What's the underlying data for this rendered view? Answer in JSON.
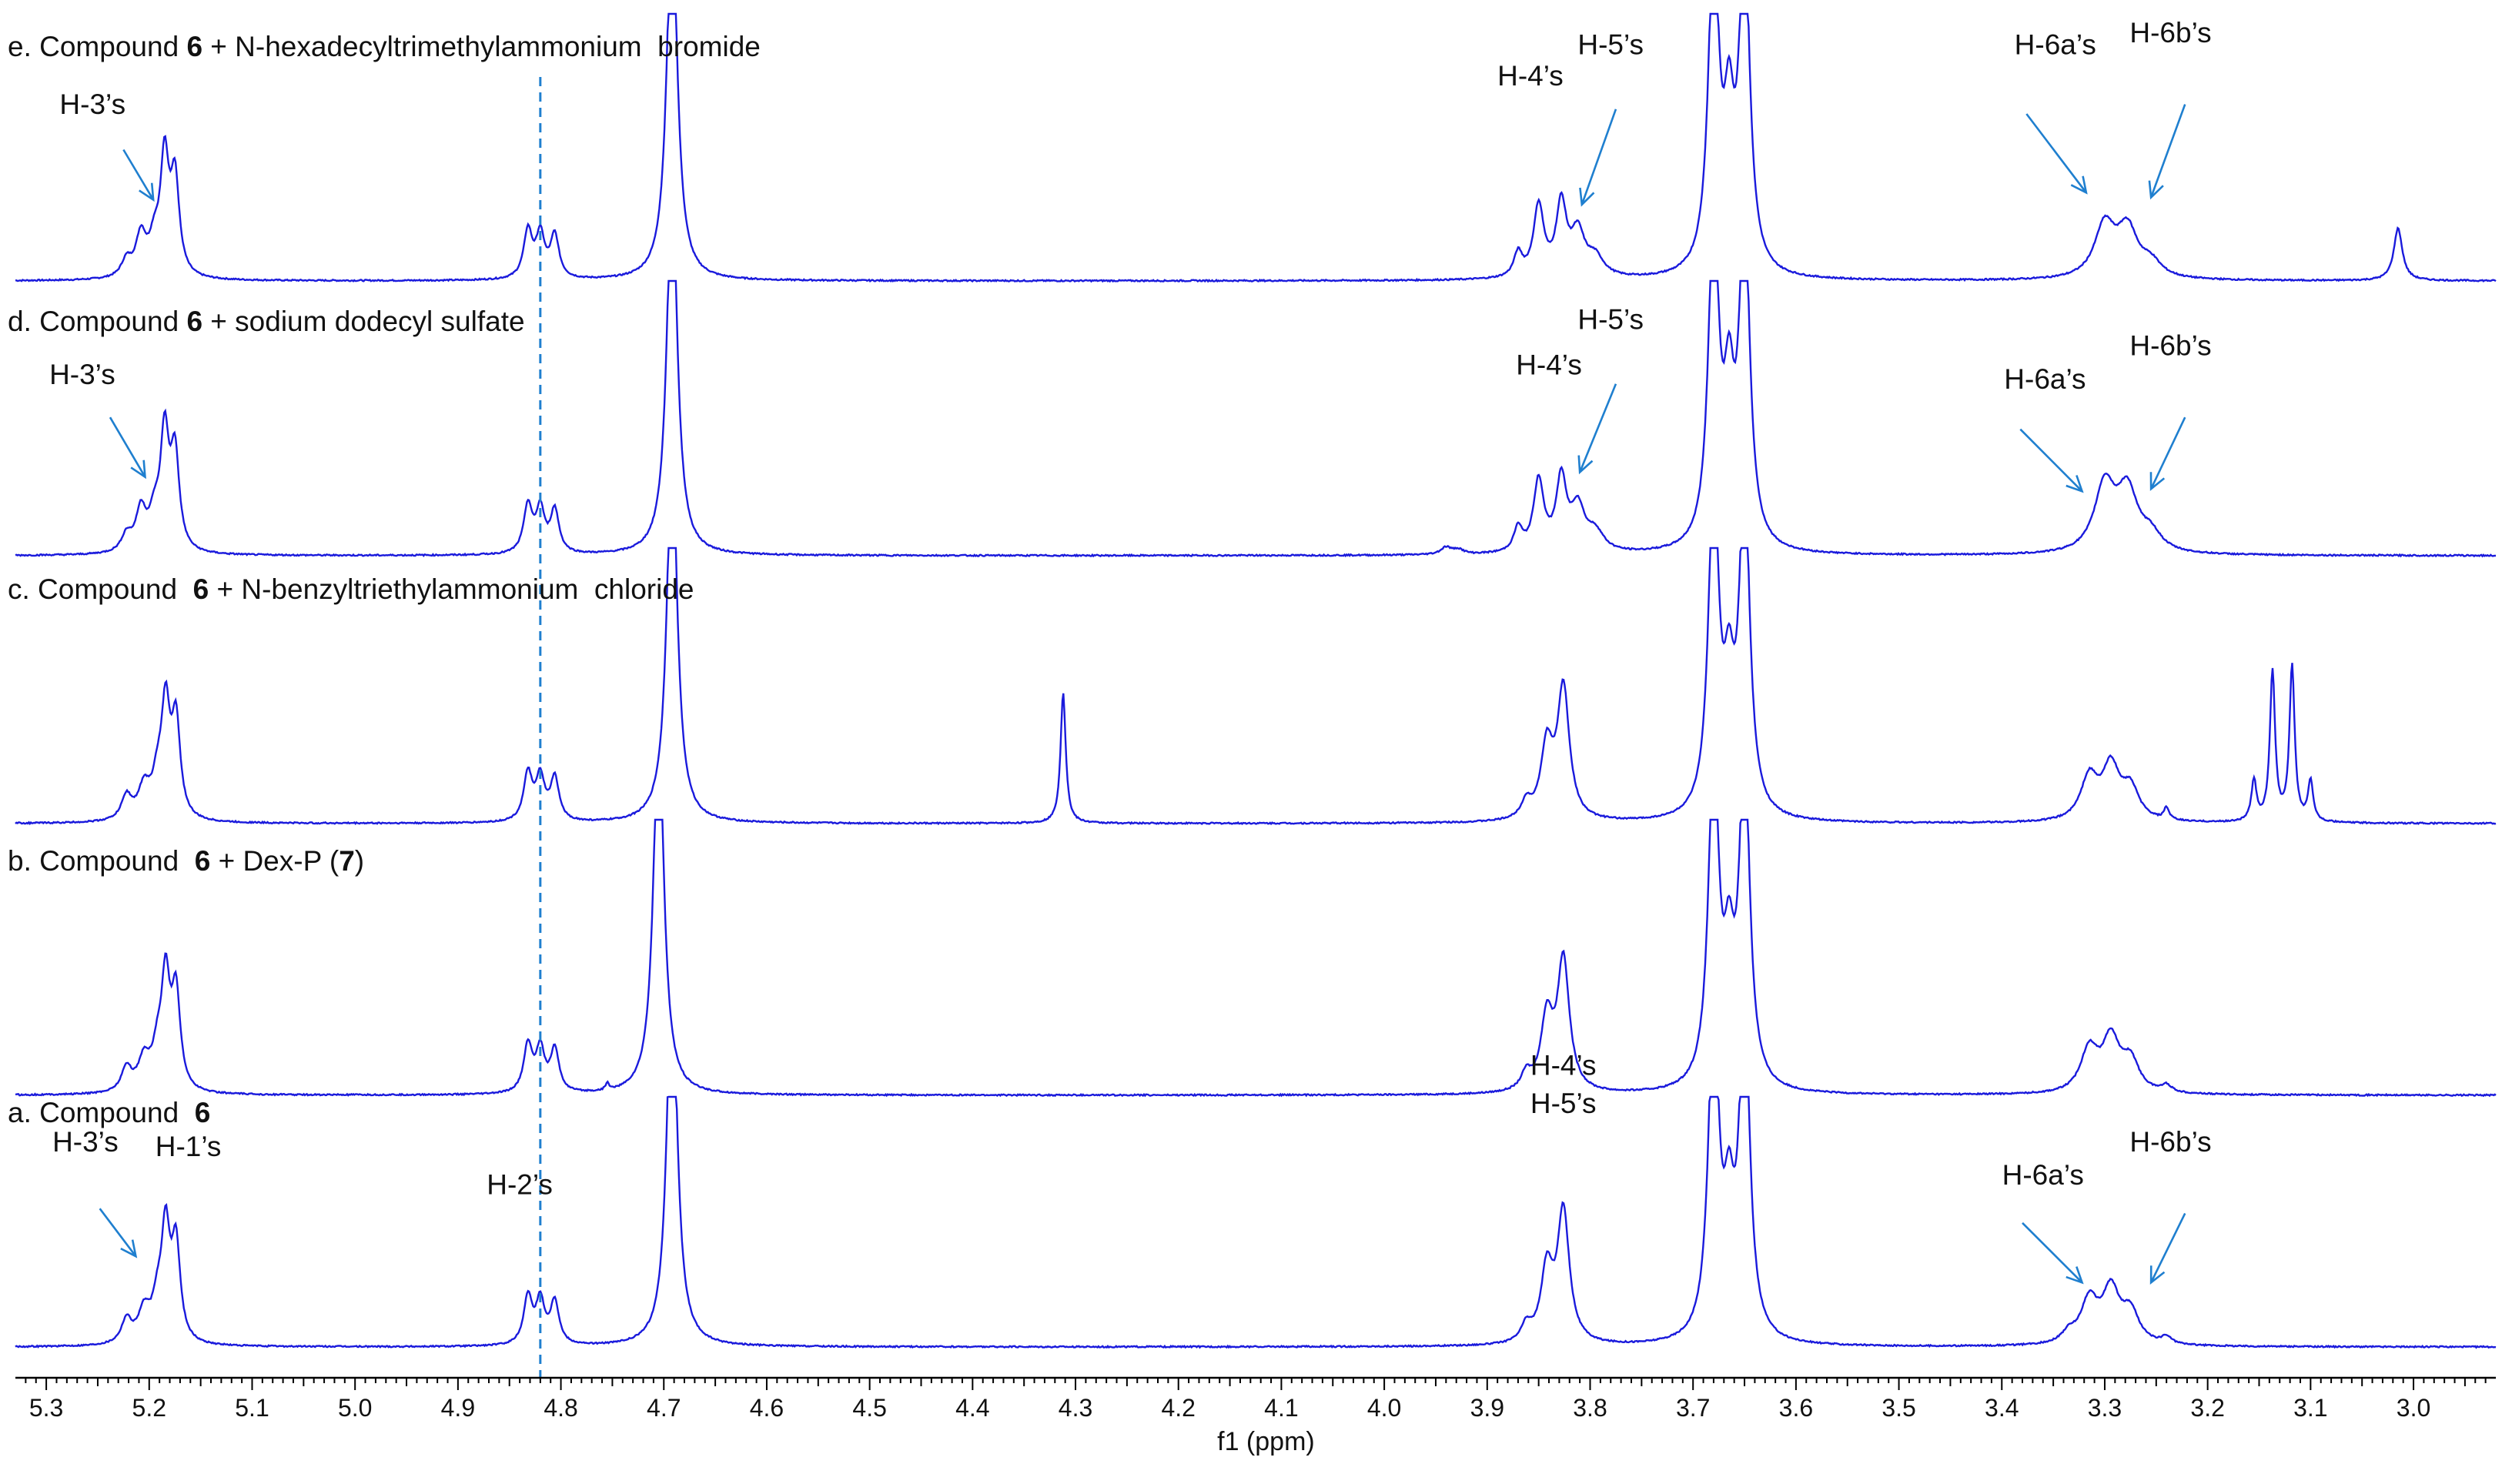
{
  "chart_data": {
    "type": "line",
    "xlabel": "f1 (ppm)",
    "xlim": [
      5.33,
      2.92
    ],
    "x_reversed": true,
    "x_ticks": [
      5.3,
      5.2,
      5.1,
      5.0,
      4.9,
      4.8,
      4.7,
      4.6,
      4.5,
      4.4,
      4.3,
      4.2,
      4.1,
      4.0,
      3.9,
      3.8,
      3.7,
      3.6,
      3.5,
      3.4,
      3.3,
      3.2,
      3.1,
      3.0
    ],
    "x_tick_labels": [
      "5.3",
      "5.2",
      "5.1",
      "5.0",
      "4.9",
      "4.8",
      "4.7",
      "4.6",
      "4.5",
      "4.4",
      "4.3",
      "4.2",
      "4.1",
      "4.0",
      "3.9",
      "3.8",
      "3.7",
      "3.6",
      "3.5",
      "3.4",
      "3.3",
      "3.2",
      "3.1",
      "3.0"
    ],
    "reference_line_ppm": 4.82,
    "line_color": "#1a1adc",
    "reference_color": "#1f7fcf",
    "arrow_color": "#1f7fcf",
    "spectra": [
      {
        "id": "e",
        "title_prefix": "e. Compound ",
        "title_bold": "6",
        "title_suffix": " + N-hexadecyltrimethylammonium  bromide",
        "peaks": [
          {
            "ppm": 5.222,
            "h": 0.07,
            "w": 0.006
          },
          {
            "ppm": 5.208,
            "h": 0.17,
            "w": 0.006
          },
          {
            "ppm": 5.195,
            "h": 0.13,
            "w": 0.006
          },
          {
            "ppm": 5.185,
            "h": 0.48,
            "w": 0.005
          },
          {
            "ppm": 5.175,
            "h": 0.4,
            "w": 0.005
          },
          {
            "ppm": 4.832,
            "h": 0.2,
            "w": 0.005
          },
          {
            "ppm": 4.82,
            "h": 0.18,
            "w": 0.005
          },
          {
            "ppm": 4.806,
            "h": 0.18,
            "w": 0.005
          },
          {
            "ppm": 4.692,
            "h": 1.6,
            "w": 0.006
          },
          {
            "ppm": 3.87,
            "h": 0.1,
            "w": 0.005
          },
          {
            "ppm": 3.85,
            "h": 0.3,
            "w": 0.006
          },
          {
            "ppm": 3.828,
            "h": 0.3,
            "w": 0.006
          },
          {
            "ppm": 3.812,
            "h": 0.18,
            "w": 0.008
          },
          {
            "ppm": 3.795,
            "h": 0.08,
            "w": 0.01
          },
          {
            "ppm": 3.68,
            "h": 1.4,
            "w": 0.006
          },
          {
            "ppm": 3.665,
            "h": 0.55,
            "w": 0.006
          },
          {
            "ppm": 3.65,
            "h": 1.4,
            "w": 0.006
          },
          {
            "ppm": 3.3,
            "h": 0.22,
            "w": 0.012
          },
          {
            "ppm": 3.278,
            "h": 0.2,
            "w": 0.012
          },
          {
            "ppm": 3.255,
            "h": 0.06,
            "w": 0.012
          },
          {
            "ppm": 3.015,
            "h": 0.22,
            "w": 0.005
          }
        ],
        "labels": [
          {
            "text": "H-3’s",
            "ppm": 5.255,
            "dy": -0.7
          },
          {
            "text": "H-4’s",
            "ppm": 3.858,
            "dy": -0.82
          },
          {
            "text": "H-5’s",
            "ppm": 3.78,
            "dy": -0.95
          },
          {
            "text": "H-6a’s",
            "ppm": 3.348,
            "dy": -0.95
          },
          {
            "text": "H-6b’s",
            "ppm": 3.236,
            "dy": -1.0
          }
        ],
        "arrows": [
          {
            "from_ppm": 5.225,
            "from_dy": -0.55,
            "to_ppm": 5.196,
            "to_dy": -0.34
          },
          {
            "from_ppm": 3.775,
            "from_dy": -0.72,
            "to_ppm": 3.808,
            "to_dy": -0.32
          },
          {
            "from_ppm": 3.376,
            "from_dy": -0.7,
            "to_ppm": 3.318,
            "to_dy": -0.37
          },
          {
            "from_ppm": 3.222,
            "from_dy": -0.74,
            "to_ppm": 3.255,
            "to_dy": -0.35
          }
        ]
      },
      {
        "id": "d",
        "title_prefix": "d. Compound ",
        "title_bold": "6",
        "title_suffix": " + sodium dodecyl sulfate",
        "peaks": [
          {
            "ppm": 5.222,
            "h": 0.07,
            "w": 0.006
          },
          {
            "ppm": 5.208,
            "h": 0.17,
            "w": 0.006
          },
          {
            "ppm": 5.195,
            "h": 0.13,
            "w": 0.006
          },
          {
            "ppm": 5.185,
            "h": 0.48,
            "w": 0.005
          },
          {
            "ppm": 5.175,
            "h": 0.4,
            "w": 0.005
          },
          {
            "ppm": 4.832,
            "h": 0.2,
            "w": 0.005
          },
          {
            "ppm": 4.82,
            "h": 0.18,
            "w": 0.005
          },
          {
            "ppm": 4.806,
            "h": 0.18,
            "w": 0.005
          },
          {
            "ppm": 4.692,
            "h": 1.6,
            "w": 0.006
          },
          {
            "ppm": 3.94,
            "h": 0.03,
            "w": 0.006
          },
          {
            "ppm": 3.928,
            "h": 0.02,
            "w": 0.006
          },
          {
            "ppm": 3.87,
            "h": 0.1,
            "w": 0.005
          },
          {
            "ppm": 3.85,
            "h": 0.3,
            "w": 0.006
          },
          {
            "ppm": 3.828,
            "h": 0.3,
            "w": 0.006
          },
          {
            "ppm": 3.812,
            "h": 0.18,
            "w": 0.008
          },
          {
            "ppm": 3.795,
            "h": 0.08,
            "w": 0.01
          },
          {
            "ppm": 3.68,
            "h": 1.4,
            "w": 0.006
          },
          {
            "ppm": 3.665,
            "h": 0.55,
            "w": 0.006
          },
          {
            "ppm": 3.65,
            "h": 1.4,
            "w": 0.006
          },
          {
            "ppm": 3.3,
            "h": 0.28,
            "w": 0.012
          },
          {
            "ppm": 3.278,
            "h": 0.25,
            "w": 0.012
          },
          {
            "ppm": 3.255,
            "h": 0.07,
            "w": 0.012
          }
        ],
        "labels": [
          {
            "text": "H-3’s",
            "ppm": 5.265,
            "dy": -0.72
          },
          {
            "text": "H-4’s",
            "ppm": 3.84,
            "dy": -0.76
          },
          {
            "text": "H-5’s",
            "ppm": 3.78,
            "dy": -0.95
          },
          {
            "text": "H-6a’s",
            "ppm": 3.358,
            "dy": -0.7
          },
          {
            "text": "H-6b’s",
            "ppm": 3.236,
            "dy": -0.84
          }
        ],
        "arrows": [
          {
            "from_ppm": 5.238,
            "from_dy": -0.58,
            "to_ppm": 5.204,
            "to_dy": -0.33
          },
          {
            "from_ppm": 3.775,
            "from_dy": -0.72,
            "to_ppm": 3.81,
            "to_dy": -0.35
          },
          {
            "from_ppm": 3.382,
            "from_dy": -0.53,
            "to_ppm": 3.322,
            "to_dy": -0.27
          },
          {
            "from_ppm": 3.222,
            "from_dy": -0.58,
            "to_ppm": 3.255,
            "to_dy": -0.28
          }
        ]
      },
      {
        "id": "c",
        "title_prefix": "c. Compound  ",
        "title_bold": "6",
        "title_suffix": " + N-benzyltriethylammonium  chloride",
        "peaks": [
          {
            "ppm": 5.222,
            "h": 0.1,
            "w": 0.006
          },
          {
            "ppm": 5.205,
            "h": 0.13,
            "w": 0.007
          },
          {
            "ppm": 5.192,
            "h": 0.14,
            "w": 0.006
          },
          {
            "ppm": 5.184,
            "h": 0.45,
            "w": 0.005
          },
          {
            "ppm": 5.174,
            "h": 0.4,
            "w": 0.005
          },
          {
            "ppm": 4.832,
            "h": 0.2,
            "w": 0.005
          },
          {
            "ppm": 4.82,
            "h": 0.18,
            "w": 0.005
          },
          {
            "ppm": 4.806,
            "h": 0.18,
            "w": 0.005
          },
          {
            "ppm": 4.692,
            "h": 1.6,
            "w": 0.006
          },
          {
            "ppm": 4.312,
            "h": 0.55,
            "w": 0.003
          },
          {
            "ppm": 3.862,
            "h": 0.07,
            "w": 0.006
          },
          {
            "ppm": 3.842,
            "h": 0.3,
            "w": 0.007
          },
          {
            "ppm": 3.826,
            "h": 0.55,
            "w": 0.007
          },
          {
            "ppm": 3.68,
            "h": 1.4,
            "w": 0.006
          },
          {
            "ppm": 3.665,
            "h": 0.45,
            "w": 0.006
          },
          {
            "ppm": 3.65,
            "h": 1.4,
            "w": 0.006
          },
          {
            "ppm": 3.315,
            "h": 0.18,
            "w": 0.01
          },
          {
            "ppm": 3.294,
            "h": 0.22,
            "w": 0.01
          },
          {
            "ppm": 3.275,
            "h": 0.13,
            "w": 0.01
          },
          {
            "ppm": 3.24,
            "h": 0.05,
            "w": 0.003
          },
          {
            "ppm": 3.155,
            "h": 0.17,
            "w": 0.003
          },
          {
            "ppm": 3.137,
            "h": 0.63,
            "w": 0.003
          },
          {
            "ppm": 3.118,
            "h": 0.65,
            "w": 0.003
          },
          {
            "ppm": 3.1,
            "h": 0.17,
            "w": 0.003
          }
        ],
        "labels": [],
        "arrows": []
      },
      {
        "id": "b",
        "title_prefix": "b. Compound  ",
        "title_bold": "6",
        "title_suffix": " + Dex-P (",
        "title_bold2": "7",
        "title_suffix2": ")",
        "peaks": [
          {
            "ppm": 5.222,
            "h": 0.1,
            "w": 0.006
          },
          {
            "ppm": 5.205,
            "h": 0.13,
            "w": 0.007
          },
          {
            "ppm": 5.192,
            "h": 0.14,
            "w": 0.006
          },
          {
            "ppm": 5.184,
            "h": 0.45,
            "w": 0.005
          },
          {
            "ppm": 5.174,
            "h": 0.4,
            "w": 0.005
          },
          {
            "ppm": 4.832,
            "h": 0.2,
            "w": 0.005
          },
          {
            "ppm": 4.82,
            "h": 0.18,
            "w": 0.005
          },
          {
            "ppm": 4.806,
            "h": 0.18,
            "w": 0.005
          },
          {
            "ppm": 4.755,
            "h": 0.03,
            "w": 0.002
          },
          {
            "ppm": 4.705,
            "h": 1.6,
            "w": 0.006
          },
          {
            "ppm": 3.862,
            "h": 0.07,
            "w": 0.006
          },
          {
            "ppm": 3.842,
            "h": 0.3,
            "w": 0.007
          },
          {
            "ppm": 3.826,
            "h": 0.55,
            "w": 0.007
          },
          {
            "ppm": 3.68,
            "h": 1.4,
            "w": 0.006
          },
          {
            "ppm": 3.665,
            "h": 0.45,
            "w": 0.006
          },
          {
            "ppm": 3.65,
            "h": 1.4,
            "w": 0.006
          },
          {
            "ppm": 3.315,
            "h": 0.18,
            "w": 0.01
          },
          {
            "ppm": 3.294,
            "h": 0.22,
            "w": 0.01
          },
          {
            "ppm": 3.275,
            "h": 0.13,
            "w": 0.01
          },
          {
            "ppm": 3.24,
            "h": 0.03,
            "w": 0.006
          }
        ],
        "labels": [],
        "arrows": []
      },
      {
        "id": "a",
        "title_prefix": "a. Compound  ",
        "title_bold": "6",
        "title_suffix": "",
        "peaks": [
          {
            "ppm": 5.222,
            "h": 0.1,
            "w": 0.006
          },
          {
            "ppm": 5.205,
            "h": 0.13,
            "w": 0.007
          },
          {
            "ppm": 5.192,
            "h": 0.14,
            "w": 0.006
          },
          {
            "ppm": 5.184,
            "h": 0.45,
            "w": 0.005
          },
          {
            "ppm": 5.174,
            "h": 0.4,
            "w": 0.005
          },
          {
            "ppm": 4.832,
            "h": 0.2,
            "w": 0.005
          },
          {
            "ppm": 4.82,
            "h": 0.18,
            "w": 0.005
          },
          {
            "ppm": 4.806,
            "h": 0.18,
            "w": 0.005
          },
          {
            "ppm": 4.692,
            "h": 1.6,
            "w": 0.006
          },
          {
            "ppm": 3.862,
            "h": 0.07,
            "w": 0.006
          },
          {
            "ppm": 3.842,
            "h": 0.3,
            "w": 0.007
          },
          {
            "ppm": 3.826,
            "h": 0.55,
            "w": 0.007
          },
          {
            "ppm": 3.68,
            "h": 1.4,
            "w": 0.006
          },
          {
            "ppm": 3.665,
            "h": 0.45,
            "w": 0.006
          },
          {
            "ppm": 3.65,
            "h": 1.4,
            "w": 0.006
          },
          {
            "ppm": 3.335,
            "h": 0.04,
            "w": 0.008
          },
          {
            "ppm": 3.315,
            "h": 0.18,
            "w": 0.01
          },
          {
            "ppm": 3.294,
            "h": 0.22,
            "w": 0.01
          },
          {
            "ppm": 3.275,
            "h": 0.13,
            "w": 0.01
          },
          {
            "ppm": 3.24,
            "h": 0.03,
            "w": 0.006
          }
        ],
        "labels": [
          {
            "text": "H-3’s",
            "ppm": 5.262,
            "dy": -0.82
          },
          {
            "text": "H-1’s",
            "ppm": 5.162,
            "dy": -0.8
          },
          {
            "text": "H-2’s",
            "ppm": 4.84,
            "dy": -0.64
          },
          {
            "text": "H-4’s",
            "ppm": 3.826,
            "dy": -1.14
          },
          {
            "text": "H-5’s",
            "ppm": 3.826,
            "dy": -0.98
          },
          {
            "text": "H-6a’s",
            "ppm": 3.36,
            "dy": -0.68
          },
          {
            "text": "H-6b’s",
            "ppm": 3.236,
            "dy": -0.82
          }
        ],
        "arrows": [
          {
            "from_ppm": 5.248,
            "from_dy": -0.58,
            "to_ppm": 5.213,
            "to_dy": -0.38
          },
          {
            "from_ppm": 3.38,
            "from_dy": -0.52,
            "to_ppm": 3.322,
            "to_dy": -0.27
          },
          {
            "from_ppm": 3.222,
            "from_dy": -0.56,
            "to_ppm": 3.255,
            "to_dy": -0.27
          }
        ]
      }
    ]
  }
}
